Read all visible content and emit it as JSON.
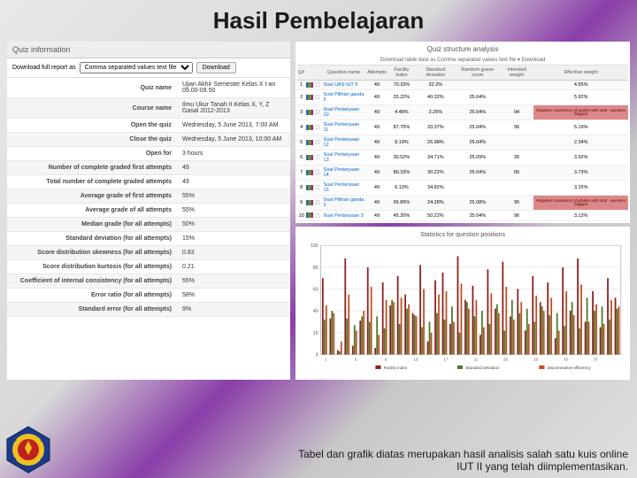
{
  "title": "Hasil Pembelajaran",
  "caption_line1": "Tabel dan grafik diatas merupakan hasil analisis salah satu kuis online",
  "caption_line2": "IUT II yang telah diimplementasikan.",
  "left": {
    "header": "Quiz information",
    "download_label": "Download full report as",
    "download_format": "Comma separated values text file",
    "download_btn": "Download",
    "rows": [
      {
        "k": "Quiz name",
        "v": "Ujian Akhir Semester Kelas X I-an 09.00-09.50"
      },
      {
        "k": "Course name",
        "v": "Ilmu Ukur Tanah II Kelas X, Y, Z Gasal 2012-2013"
      },
      {
        "k": "Open the quiz",
        "v": "Wednesday, 5 June 2013, 7:00 AM"
      },
      {
        "k": "Close the quiz",
        "v": "Wednesday, 5 June 2013, 10:00 AM"
      },
      {
        "k": "Open for",
        "v": "3 hours"
      },
      {
        "k": "Number of complete graded first attempts",
        "v": "49"
      },
      {
        "k": "Total number of complete graded attempts",
        "v": "49"
      },
      {
        "k": "Average grade of first attempts",
        "v": "55%"
      },
      {
        "k": "Average grade of all attempts",
        "v": "55%"
      },
      {
        "k": "Median grade (for all attempts)",
        "v": "50%"
      },
      {
        "k": "Standard deviation (for all attempts)",
        "v": "15%"
      },
      {
        "k": "Score distribution skewness (for all attempts)",
        "v": "0.83"
      },
      {
        "k": "Score distribution kurtosis (for all attempts)",
        "v": "0.21"
      },
      {
        "k": "Coefficient of internal consistency (for all attempts)",
        "v": "55%"
      },
      {
        "k": "Error ratio (for all attempts)",
        "v": "58%"
      },
      {
        "k": "Standard error (for all attempts)",
        "v": "9%"
      }
    ]
  },
  "right": {
    "header": "Quiz structure analysis",
    "sub": "Download table data as  Comma separated values text file ▾   Download",
    "columns": [
      "Q#",
      "",
      "",
      "Question name",
      "Attempts",
      "Facility index",
      "Standard deviation",
      "Random guess score",
      "Intended weight",
      "Effective weight"
    ],
    "rows": [
      {
        "n": "1",
        "name": "Soal UAS IUT II",
        "att": "49",
        "fi": "70.33%",
        "sd": "32.2%",
        "rg": "",
        "iw": "",
        "ew": "4.55%",
        "warn": false
      },
      {
        "n": "2",
        "name": "Soal Pilihan ganda 5",
        "att": "49",
        "fi": "33.22%",
        "sd": "40.32%",
        "rg": "25.04%",
        "iw": "",
        "ew": "5.92%",
        "warn": false
      },
      {
        "n": "3",
        "name": "Soal Pertanyaan 10",
        "att": "49",
        "fi": "4.48%",
        "sd": "3.25%",
        "rg": "25.04%",
        "iw": "94",
        "ew": "",
        "warn": true
      },
      {
        "n": "4",
        "name": "Soal Pertanyaan 11",
        "att": "49",
        "fi": "87.70%",
        "sd": "33.37%",
        "rg": "25.04%",
        "iw": "96",
        "ew": "5.19%",
        "warn": false
      },
      {
        "n": "5",
        "name": "Soal Pertanyaan 12",
        "att": "49",
        "fi": "8.19%",
        "sd": "26.98%",
        "rg": "25.04%",
        "iw": "",
        "ew": "2.34%",
        "warn": false
      },
      {
        "n": "6",
        "name": "Soal Pertanyaan 13",
        "att": "49",
        "fi": "30.52%",
        "sd": "34.71%",
        "rg": "25.09%",
        "iw": "26",
        "ew": "3.92%",
        "warn": false
      },
      {
        "n": "7",
        "name": "Soal Pertanyaan 14",
        "att": "49",
        "fi": "80.33%",
        "sd": "30.22%",
        "rg": "25.04%",
        "iw": "66",
        "ew": "3.73%",
        "warn": false
      },
      {
        "n": "8",
        "name": "Soal Pertanyaan 15",
        "att": "49",
        "fi": "6.13%",
        "sd": "34.82%",
        "rg": "",
        "iw": "",
        "ew": "3.15%",
        "warn": false
      },
      {
        "n": "9",
        "name": "Soal Pilihan ganda 2",
        "att": "49",
        "fi": "65.89%",
        "sd": "24.28%",
        "rg": "25.08%",
        "iw": "95",
        "ew": "",
        "warn": true
      },
      {
        "n": "10",
        "name": "Soal Pertanyaan 3",
        "att": "49",
        "fi": "45.20%",
        "sd": "50.22%",
        "rg": "25.04%",
        "iw": "96",
        "ew": "3.13%",
        "warn": false
      }
    ],
    "warn_text": "Negative covariance of grades with total - question flagged"
  },
  "chart": {
    "title": "Statistics for question positions",
    "x_count": 40,
    "series": [
      {
        "name": "Facility index",
        "color": "#8b2020"
      },
      {
        "name": "Standard deviation",
        "color": "#4a7a2a"
      },
      {
        "name": "Discriminative efficiency",
        "color": "#c05020"
      }
    ],
    "grid_color": "#d0d0d0",
    "background": "#ffffff",
    "ylim": [
      0,
      100
    ],
    "ytick_step": 20,
    "bar_group_width": 0.7,
    "data": [
      [
        70,
        32,
        45
      ],
      [
        33,
        40,
        38
      ],
      [
        4,
        3,
        12
      ],
      [
        88,
        33,
        55
      ],
      [
        8,
        27,
        22
      ],
      [
        31,
        35,
        40
      ],
      [
        80,
        30,
        62
      ],
      [
        6,
        35,
        18
      ],
      [
        66,
        24,
        50
      ],
      [
        45,
        50,
        48
      ],
      [
        72,
        28,
        52
      ],
      [
        55,
        42,
        46
      ],
      [
        38,
        36,
        35
      ],
      [
        82,
        25,
        60
      ],
      [
        12,
        30,
        20
      ],
      [
        68,
        38,
        55
      ],
      [
        75,
        32,
        58
      ],
      [
        28,
        44,
        30
      ],
      [
        90,
        20,
        65
      ],
      [
        50,
        48,
        42
      ],
      [
        63,
        35,
        50
      ],
      [
        18,
        40,
        25
      ],
      [
        78,
        28,
        56
      ],
      [
        42,
        46,
        38
      ],
      [
        85,
        22,
        62
      ],
      [
        35,
        50,
        32
      ],
      [
        60,
        38,
        48
      ],
      [
        22,
        42,
        28
      ],
      [
        72,
        30,
        54
      ],
      [
        48,
        44,
        40
      ],
      [
        66,
        36,
        52
      ],
      [
        15,
        38,
        22
      ],
      [
        80,
        26,
        58
      ],
      [
        40,
        48,
        36
      ],
      [
        88,
        24,
        64
      ],
      [
        30,
        52,
        30
      ],
      [
        58,
        40,
        46
      ],
      [
        25,
        44,
        28
      ],
      [
        70,
        32,
        50
      ],
      [
        52,
        42,
        44
      ]
    ]
  },
  "colors": {
    "accent": "#8a3da8",
    "logo_blue": "#1a3a8a",
    "logo_yellow": "#f0c020",
    "logo_red": "#c02020"
  }
}
